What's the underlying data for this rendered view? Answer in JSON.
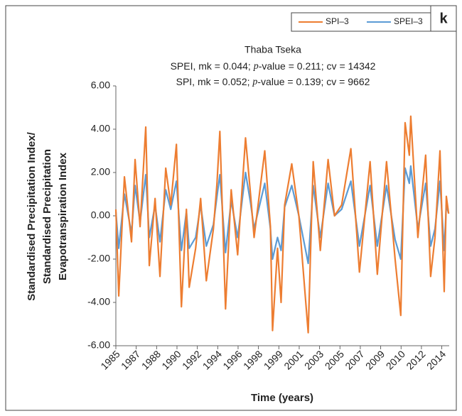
{
  "chart_data": {
    "type": "line",
    "panel_label": "k",
    "title": "Thaba Tseka",
    "subtitle_lines": [
      [
        "SPEI, mk = 0.044; ",
        "p",
        "-value = 0.211; cv = 14342"
      ],
      [
        "SPI, mk = 0.052; ",
        "p",
        "-value = 0.139; cv = 9662"
      ]
    ],
    "y_label_lines": [
      "Standardised Precipitation Index/",
      "Standardised Precipitation",
      "Evapotranspiration Index"
    ],
    "x_label": "Time (years)",
    "xlim": [
      1985,
      2015
    ],
    "xticks": [
      {
        "value": 1985,
        "label": "1985"
      },
      {
        "value": 1986.83,
        "label": "1987"
      },
      {
        "value": 1988.67,
        "label": "1988"
      },
      {
        "value": 1990.5,
        "label": "1990"
      },
      {
        "value": 1992.33,
        "label": "1992"
      },
      {
        "value": 1994.17,
        "label": "1994"
      },
      {
        "value": 1996,
        "label": "1996"
      },
      {
        "value": 1997.83,
        "label": "1998"
      },
      {
        "value": 1999.67,
        "label": "1999"
      },
      {
        "value": 2001.5,
        "label": "2001"
      },
      {
        "value": 2003.33,
        "label": "2003"
      },
      {
        "value": 2005.17,
        "label": "2005"
      },
      {
        "value": 2007,
        "label": "2007"
      },
      {
        "value": 2008.83,
        "label": "2009"
      },
      {
        "value": 2010.67,
        "label": "2010"
      },
      {
        "value": 2012.5,
        "label": "2012"
      },
      {
        "value": 2014.33,
        "label": "2014"
      }
    ],
    "ylim": [
      -6,
      6
    ],
    "yticks": [
      {
        "value": -6,
        "label": "-6.00"
      },
      {
        "value": -4,
        "label": "-4.00"
      },
      {
        "value": -2,
        "label": "-2.00"
      },
      {
        "value": 0,
        "label": "0.00"
      },
      {
        "value": 2,
        "label": "2.00"
      },
      {
        "value": 4,
        "label": "4.00"
      },
      {
        "value": 6,
        "label": "6.00"
      }
    ],
    "x": [
      1985.0,
      1985.26,
      1985.77,
      1986.41,
      1986.73,
      1987.18,
      1987.69,
      1988.01,
      1988.53,
      1988.97,
      1989.49,
      1989.94,
      1990.45,
      1990.9,
      1991.35,
      1991.6,
      1992.18,
      1992.63,
      1993.14,
      1993.78,
      1994.1,
      1994.36,
      1994.87,
      1995.38,
      1995.96,
      1996.67,
      1997.12,
      1997.44,
      1998.4,
      1998.91,
      1999.1,
      1999.55,
      1999.87,
      2000.19,
      2000.83,
      2001.47,
      2002.31,
      2002.76,
      2003.4,
      2004.1,
      2004.68,
      2005.32,
      2006.15,
      2006.92,
      2007.88,
      2008.53,
      2009.36,
      2010.13,
      2010.64,
      2011.03,
      2011.41,
      2011.54,
      2012.18,
      2012.88,
      2013.33,
      2013.72,
      2014.17,
      2014.55,
      2014.74,
      2014.95
    ],
    "series": [
      {
        "name": "SPI–3",
        "color": "#ED7D31",
        "values": [
          0.3,
          -3.7,
          1.8,
          -1.2,
          2.6,
          -0.5,
          4.1,
          -2.3,
          0.8,
          -2.8,
          2.2,
          0.5,
          3.3,
          -4.2,
          0.3,
          -3.3,
          -1.5,
          0.8,
          -3.0,
          -0.6,
          1.5,
          3.9,
          -4.3,
          1.2,
          -1.8,
          3.6,
          1.0,
          -1.0,
          3.0,
          -0.5,
          -5.3,
          -1.5,
          -4.0,
          0.5,
          2.4,
          0.0,
          -5.4,
          2.5,
          -1.6,
          2.6,
          0.0,
          0.5,
          3.1,
          -2.6,
          2.5,
          -2.7,
          2.5,
          -2.0,
          -4.6,
          4.3,
          2.8,
          4.6,
          -1.0,
          2.8,
          -2.8,
          -1.0,
          3.0,
          -3.5,
          0.9,
          0.1
        ]
      },
      {
        "name": "SPEI–3",
        "color": "#5B9BD5",
        "values": [
          0.2,
          -1.5,
          1.0,
          -0.8,
          1.4,
          -0.3,
          1.9,
          -1.0,
          0.5,
          -1.2,
          1.2,
          0.3,
          1.6,
          -1.6,
          0.2,
          -1.5,
          -1.0,
          0.5,
          -1.4,
          -0.4,
          0.9,
          1.9,
          -1.7,
          0.7,
          -1.0,
          2.0,
          0.6,
          -0.6,
          1.5,
          -0.6,
          -2.0,
          -1.0,
          -1.6,
          0.4,
          1.4,
          0.0,
          -2.2,
          1.4,
          -1.0,
          1.5,
          0.0,
          0.3,
          1.6,
          -1.4,
          1.4,
          -1.4,
          1.4,
          -1.1,
          -2.0,
          2.2,
          1.5,
          2.3,
          -0.6,
          1.5,
          -1.4,
          -0.6,
          1.6,
          -1.6,
          0.5,
          0.1
        ]
      }
    ]
  }
}
